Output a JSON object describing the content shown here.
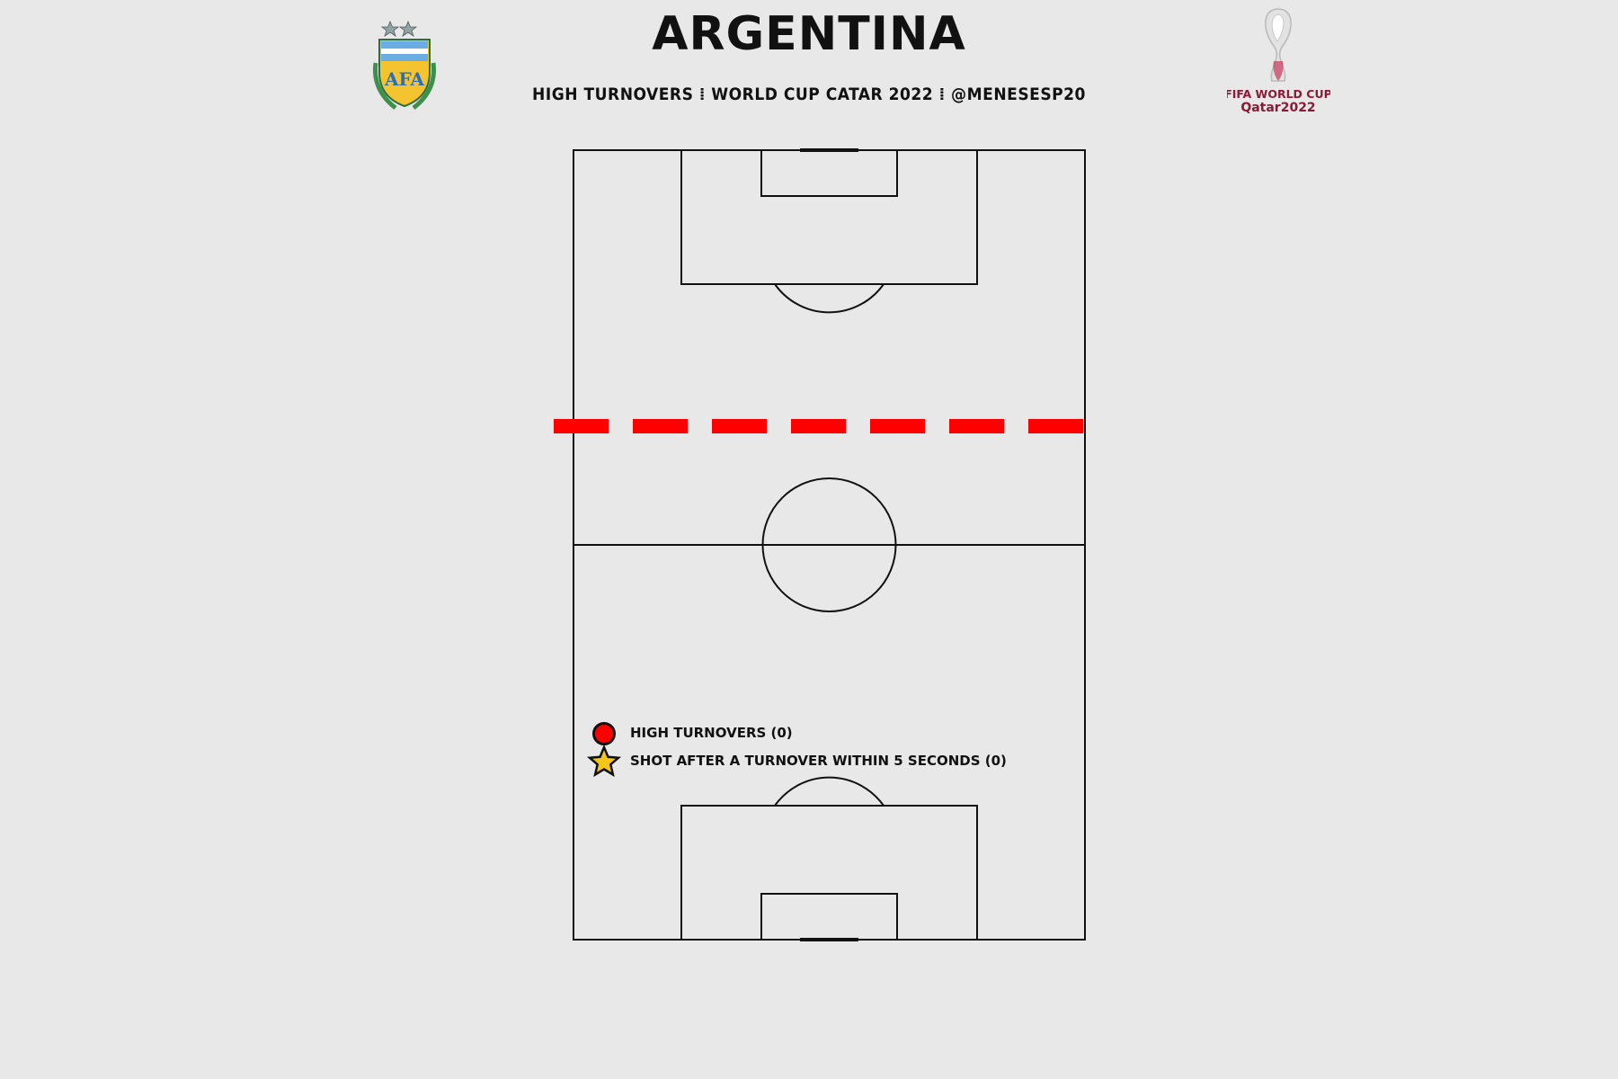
{
  "header": {
    "title": "ARGENTINA",
    "subtitle": "HIGH TURNOVERS ⁞ WORLD CUP CATAR 2022 ⁞ @MENESESP20"
  },
  "logos": {
    "left": "AFA",
    "right_line1": "FIFA WORLD CUP",
    "right_line2": "Qatar2022"
  },
  "colors": {
    "background": "#e8e8e8",
    "pitch_lines": "#111111",
    "threshold_line": "#ff0000",
    "turnover_marker": "#ff0000",
    "shot_marker": "#f5c518"
  },
  "chart_data": {
    "type": "scatter",
    "title": "ARGENTINA",
    "subtitle": "HIGH TURNOVERS ⁞ WORLD CUP CATAR 2022 ⁞ @MENESESP20",
    "pitch_orientation": "vertical",
    "high_turnover_threshold_line": "dashed red",
    "series": [
      {
        "name": "HIGH TURNOVERS (0)",
        "marker": "circle",
        "points": []
      },
      {
        "name": "SHOT AFTER A TURNOVER WITHIN 5 SECONDS (0)",
        "marker": "star",
        "points": []
      }
    ],
    "legend_placement": "lower-left of pitch"
  }
}
